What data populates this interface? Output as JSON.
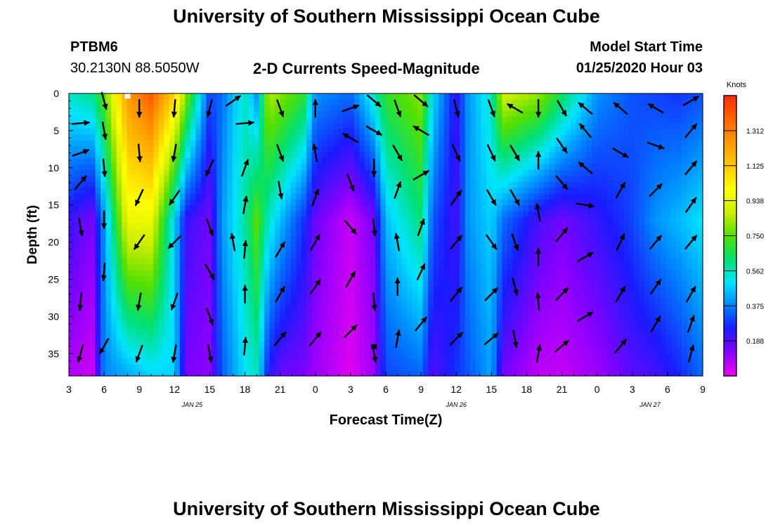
{
  "page": {
    "title_top": "University of Southern Mississippi Ocean Cube",
    "title_bottom": "University of Southern Mississippi Ocean Cube"
  },
  "header": {
    "station": "PTBM6",
    "coords": "30.2130N 88.5050W",
    "subtitle": "2-D Currents Speed-Magnitude",
    "model_start_label": "Model Start Time",
    "model_start_value": "01/25/2020 Hour 03"
  },
  "chart_data": {
    "type": "heatmap",
    "title": "2-D Currents Speed-Magnitude",
    "xlabel": "Forecast Time(Z)",
    "ylabel": "Depth (ft)",
    "x_tick_labels": [
      "3",
      "6",
      "9",
      "12",
      "15",
      "18",
      "21",
      "0",
      "3",
      "6",
      "9",
      "12",
      "15",
      "18",
      "21",
      "0",
      "3",
      "6",
      "9"
    ],
    "x_range_hours": [
      0,
      54
    ],
    "date_labels": [
      {
        "text": "JAN 25",
        "hour": 10.5
      },
      {
        "text": "JAN 26",
        "hour": 33
      },
      {
        "text": "JAN 27",
        "hour": 49.5
      }
    ],
    "y_ticks": [
      0,
      5,
      10,
      15,
      20,
      25,
      30,
      35
    ],
    "y_range_ft": [
      0,
      38
    ],
    "y_inverted": true,
    "colorbar": {
      "unit_label": "Knots",
      "tick_labels": [
        "1.312",
        "1.125",
        "0.938",
        "0.750",
        "0.562",
        "0.375",
        "0.188"
      ],
      "range": [
        0,
        1.5
      ],
      "colors": [
        "#ee00ee",
        "#8a00ff",
        "#1a1aff",
        "#0080ff",
        "#00e5ff",
        "#00e070",
        "#55e000",
        "#ccee00",
        "#ffff00",
        "#ffc800",
        "#ff9a00",
        "#ff6400",
        "#ff2a00"
      ]
    },
    "speed_profiles": [
      {
        "hour": 0,
        "surface": 0.55,
        "mid": 0.22,
        "bottom": 0.08
      },
      {
        "hour": 2,
        "surface": 0.6,
        "mid": 0.14,
        "bottom": 0.04
      },
      {
        "hour": 3,
        "surface": 0.75,
        "mid": 0.4,
        "bottom": 0.38
      },
      {
        "hour": 5,
        "surface": 1.25,
        "mid": 0.95,
        "bottom": 0.42
      },
      {
        "hour": 7,
        "surface": 1.4,
        "mid": 0.95,
        "bottom": 0.48
      },
      {
        "hour": 9,
        "surface": 1.1,
        "mid": 0.48,
        "bottom": 0.48
      },
      {
        "hour": 10,
        "surface": 0.8,
        "mid": 0.22,
        "bottom": 0.14
      },
      {
        "hour": 12,
        "surface": 0.3,
        "mid": 0.15,
        "bottom": 0.12
      },
      {
        "hour": 13,
        "surface": 0.35,
        "mid": 0.4,
        "bottom": 0.32
      },
      {
        "hour": 15,
        "surface": 0.55,
        "mid": 0.58,
        "bottom": 0.5
      },
      {
        "hour": 16,
        "surface": 0.4,
        "mid": 0.75,
        "bottom": 0.55
      },
      {
        "hour": 17,
        "surface": 0.85,
        "mid": 0.55,
        "bottom": 0.24
      },
      {
        "hour": 18,
        "surface": 0.8,
        "mid": 0.45,
        "bottom": 0.16
      },
      {
        "hour": 20,
        "surface": 0.7,
        "mid": 0.28,
        "bottom": 0.14
      },
      {
        "hour": 21,
        "surface": 0.4,
        "mid": 0.16,
        "bottom": 0.1
      },
      {
        "hour": 24,
        "surface": 0.35,
        "mid": 0.05,
        "bottom": 0.02
      },
      {
        "hour": 26,
        "surface": 0.55,
        "mid": 0.15,
        "bottom": 0.1
      },
      {
        "hour": 27,
        "surface": 0.7,
        "mid": 0.45,
        "bottom": 0.3
      },
      {
        "hour": 30,
        "surface": 0.8,
        "mid": 0.62,
        "bottom": 0.34
      },
      {
        "hour": 31,
        "surface": 0.5,
        "mid": 0.32,
        "bottom": 0.18
      },
      {
        "hour": 33,
        "surface": 0.22,
        "mid": 0.2,
        "bottom": 0.28
      },
      {
        "hour": 34,
        "surface": 0.4,
        "mid": 0.4,
        "bottom": 0.32
      },
      {
        "hour": 36,
        "surface": 0.55,
        "mid": 0.48,
        "bottom": 0.42
      },
      {
        "hour": 37,
        "surface": 0.9,
        "mid": 0.35,
        "bottom": 0.15
      },
      {
        "hour": 40,
        "surface": 0.82,
        "mid": 0.2,
        "bottom": 0.06
      },
      {
        "hour": 42,
        "surface": 0.65,
        "mid": 0.15,
        "bottom": 0.05
      },
      {
        "hour": 45,
        "surface": 0.4,
        "mid": 0.22,
        "bottom": 0.1
      },
      {
        "hour": 48,
        "surface": 0.32,
        "mid": 0.3,
        "bottom": 0.18
      },
      {
        "hour": 50,
        "surface": 0.3,
        "mid": 0.4,
        "bottom": 0.2
      },
      {
        "hour": 52,
        "surface": 0.28,
        "mid": 0.45,
        "bottom": 0.26
      },
      {
        "hour": 54,
        "surface": 0.32,
        "mid": 0.5,
        "bottom": 0.35
      }
    ],
    "vectors": [
      {
        "hour": 1.0,
        "depth": 4,
        "dir": 85
      },
      {
        "hour": 1.0,
        "depth": 8,
        "dir": 70
      },
      {
        "hour": 1.0,
        "depth": 12,
        "dir": 40
      },
      {
        "hour": 1.0,
        "depth": 18,
        "dir": 170
      },
      {
        "hour": 1.0,
        "depth": 28,
        "dir": 185
      },
      {
        "hour": 1.0,
        "depth": 35,
        "dir": 195
      },
      {
        "hour": 3.0,
        "depth": 1,
        "dir": 165
      },
      {
        "hour": 3.0,
        "depth": 5,
        "dir": 170
      },
      {
        "hour": 3.0,
        "depth": 10,
        "dir": 175
      },
      {
        "hour": 3.0,
        "depth": 17,
        "dir": 180
      },
      {
        "hour": 3.0,
        "depth": 24,
        "dir": 185
      },
      {
        "hour": 3.0,
        "depth": 34,
        "dir": 210
      },
      {
        "hour": 6.0,
        "depth": 2,
        "dir": 180
      },
      {
        "hour": 6.0,
        "depth": 8,
        "dir": 175
      },
      {
        "hour": 6.0,
        "depth": 14,
        "dir": 205
      },
      {
        "hour": 6.0,
        "depth": 20,
        "dir": 215
      },
      {
        "hour": 6.0,
        "depth": 28,
        "dir": 190
      },
      {
        "hour": 6.0,
        "depth": 35,
        "dir": 200
      },
      {
        "hour": 9.0,
        "depth": 2,
        "dir": 185
      },
      {
        "hour": 9.0,
        "depth": 8,
        "dir": 190
      },
      {
        "hour": 9.0,
        "depth": 14,
        "dir": 215
      },
      {
        "hour": 9.0,
        "depth": 20,
        "dir": 225
      },
      {
        "hour": 9.0,
        "depth": 28,
        "dir": 200
      },
      {
        "hour": 9.0,
        "depth": 35,
        "dir": 190
      },
      {
        "hour": 12.0,
        "depth": 2,
        "dir": 195
      },
      {
        "hour": 12.0,
        "depth": 10,
        "dir": 205
      },
      {
        "hour": 12.0,
        "depth": 18,
        "dir": 160
      },
      {
        "hour": 12.0,
        "depth": 24,
        "dir": 150
      },
      {
        "hour": 12.0,
        "depth": 30,
        "dir": 160
      },
      {
        "hour": 12.0,
        "depth": 35,
        "dir": 170
      },
      {
        "hour": 14.0,
        "depth": 1,
        "dir": 55
      },
      {
        "hour": 14.0,
        "depth": 20,
        "dir": 350
      },
      {
        "hour": 15.0,
        "depth": 4,
        "dir": 85
      },
      {
        "hour": 15.0,
        "depth": 10,
        "dir": 20
      },
      {
        "hour": 15.0,
        "depth": 15,
        "dir": 10
      },
      {
        "hour": 15.0,
        "depth": 21,
        "dir": 5
      },
      {
        "hour": 15.0,
        "depth": 27,
        "dir": 0
      },
      {
        "hour": 15.0,
        "depth": 34,
        "dir": 5
      },
      {
        "hour": 18.0,
        "depth": 2,
        "dir": 160
      },
      {
        "hour": 18.0,
        "depth": 8,
        "dir": 160
      },
      {
        "hour": 18.0,
        "depth": 13,
        "dir": 170
      },
      {
        "hour": 18.0,
        "depth": 21,
        "dir": 30
      },
      {
        "hour": 18.0,
        "depth": 27,
        "dir": 30
      },
      {
        "hour": 18.0,
        "depth": 33,
        "dir": 40
      },
      {
        "hour": 21.0,
        "depth": 2,
        "dir": 0
      },
      {
        "hour": 21.0,
        "depth": 8,
        "dir": 350
      },
      {
        "hour": 21.0,
        "depth": 14,
        "dir": 20
      },
      {
        "hour": 21.0,
        "depth": 20,
        "dir": 30
      },
      {
        "hour": 21.0,
        "depth": 26,
        "dir": 35
      },
      {
        "hour": 21.0,
        "depth": 33,
        "dir": 40
      },
      {
        "hour": 24.0,
        "depth": 2,
        "dir": 70
      },
      {
        "hour": 24.0,
        "depth": 6,
        "dir": 300
      },
      {
        "hour": 24.0,
        "depth": 12,
        "dir": 160
      },
      {
        "hour": 24.0,
        "depth": 18,
        "dir": 140
      },
      {
        "hour": 24.0,
        "depth": 25,
        "dir": 30
      },
      {
        "hour": 24.0,
        "depth": 32,
        "dir": 45
      },
      {
        "hour": 26.0,
        "depth": 1,
        "dir": 130
      },
      {
        "hour": 26.0,
        "depth": 5,
        "dir": 120
      },
      {
        "hour": 26.0,
        "depth": 10,
        "dir": 180
      },
      {
        "hour": 26.0,
        "depth": 18,
        "dir": 175
      },
      {
        "hour": 26.0,
        "depth": 28,
        "dir": 175
      },
      {
        "hour": 26.0,
        "depth": 35,
        "dir": 170
      },
      {
        "hour": 28.0,
        "depth": 2,
        "dir": 160
      },
      {
        "hour": 28.0,
        "depth": 8,
        "dir": 150
      },
      {
        "hour": 28.0,
        "depth": 13,
        "dir": 20
      },
      {
        "hour": 28.0,
        "depth": 20,
        "dir": 350
      },
      {
        "hour": 28.0,
        "depth": 26,
        "dir": 0
      },
      {
        "hour": 28.0,
        "depth": 33,
        "dir": 10
      },
      {
        "hour": 30.0,
        "depth": 1,
        "dir": 130
      },
      {
        "hour": 30.0,
        "depth": 5,
        "dir": 300
      },
      {
        "hour": 30.0,
        "depth": 11,
        "dir": 60
      },
      {
        "hour": 30.0,
        "depth": 18,
        "dir": 20
      },
      {
        "hour": 30.0,
        "depth": 24,
        "dir": 25
      },
      {
        "hour": 30.0,
        "depth": 31,
        "dir": 40
      },
      {
        "hour": 33.0,
        "depth": 2,
        "dir": 165
      },
      {
        "hour": 33.0,
        "depth": 8,
        "dir": 155
      },
      {
        "hour": 33.0,
        "depth": 14,
        "dir": 35
      },
      {
        "hour": 33.0,
        "depth": 20,
        "dir": 40
      },
      {
        "hour": 33.0,
        "depth": 27,
        "dir": 40
      },
      {
        "hour": 33.0,
        "depth": 33,
        "dir": 45
      },
      {
        "hour": 36.0,
        "depth": 2,
        "dir": 160
      },
      {
        "hour": 36.0,
        "depth": 8,
        "dir": 155
      },
      {
        "hour": 36.0,
        "depth": 14,
        "dir": 150
      },
      {
        "hour": 36.0,
        "depth": 20,
        "dir": 145
      },
      {
        "hour": 36.0,
        "depth": 27,
        "dir": 45
      },
      {
        "hour": 36.0,
        "depth": 33,
        "dir": 50
      },
      {
        "hour": 38.0,
        "depth": 2,
        "dir": 300
      },
      {
        "hour": 38.0,
        "depth": 8,
        "dir": 150
      },
      {
        "hour": 38.0,
        "depth": 14,
        "dir": 150
      },
      {
        "hour": 38.0,
        "depth": 20,
        "dir": 160
      },
      {
        "hour": 38.0,
        "depth": 26,
        "dir": 165
      },
      {
        "hour": 38.0,
        "depth": 33,
        "dir": 170
      },
      {
        "hour": 40.0,
        "depth": 2,
        "dir": 180
      },
      {
        "hour": 40.0,
        "depth": 9,
        "dir": 0
      },
      {
        "hour": 40.0,
        "depth": 16,
        "dir": 350
      },
      {
        "hour": 40.0,
        "depth": 22,
        "dir": 0
      },
      {
        "hour": 40.0,
        "depth": 28,
        "dir": 355
      },
      {
        "hour": 40.0,
        "depth": 35,
        "dir": 10
      },
      {
        "hour": 42.0,
        "depth": 2,
        "dir": 150
      },
      {
        "hour": 42.0,
        "depth": 7,
        "dir": 145
      },
      {
        "hour": 42.0,
        "depth": 12,
        "dir": 140
      },
      {
        "hour": 42.0,
        "depth": 19,
        "dir": 40
      },
      {
        "hour": 42.0,
        "depth": 27,
        "dir": 45
      },
      {
        "hour": 42.0,
        "depth": 34,
        "dir": 50
      },
      {
        "hour": 44.0,
        "depth": 2,
        "dir": 310
      },
      {
        "hour": 44.0,
        "depth": 5,
        "dir": 320
      },
      {
        "hour": 44.0,
        "depth": 10,
        "dir": 310
      },
      {
        "hour": 44.0,
        "depth": 15,
        "dir": 100
      },
      {
        "hour": 44.0,
        "depth": 22,
        "dir": 60
      },
      {
        "hour": 44.0,
        "depth": 30,
        "dir": 60
      },
      {
        "hour": 47.0,
        "depth": 2,
        "dir": 310
      },
      {
        "hour": 47.0,
        "depth": 8,
        "dir": 120
      },
      {
        "hour": 47.0,
        "depth": 13,
        "dir": 30
      },
      {
        "hour": 47.0,
        "depth": 20,
        "dir": 25
      },
      {
        "hour": 47.0,
        "depth": 27,
        "dir": 30
      },
      {
        "hour": 47.0,
        "depth": 34,
        "dir": 40
      },
      {
        "hour": 50.0,
        "depth": 2,
        "dir": 300
      },
      {
        "hour": 50.0,
        "depth": 7,
        "dir": 110
      },
      {
        "hour": 50.0,
        "depth": 13,
        "dir": 45
      },
      {
        "hour": 50.0,
        "depth": 20,
        "dir": 40
      },
      {
        "hour": 50.0,
        "depth": 26,
        "dir": 35
      },
      {
        "hour": 50.0,
        "depth": 31,
        "dir": 30
      },
      {
        "hour": 53.0,
        "depth": 1,
        "dir": 60
      },
      {
        "hour": 53.0,
        "depth": 5,
        "dir": 40
      },
      {
        "hour": 53.0,
        "depth": 10,
        "dir": 40
      },
      {
        "hour": 53.0,
        "depth": 15,
        "dir": 35
      },
      {
        "hour": 53.0,
        "depth": 20,
        "dir": 40
      },
      {
        "hour": 53.0,
        "depth": 27,
        "dir": 30
      },
      {
        "hour": 53.0,
        "depth": 31,
        "dir": 20
      },
      {
        "hour": 53.0,
        "depth": 35,
        "dir": 15
      }
    ],
    "markers": [
      {
        "hour": 5,
        "depth": 0.3,
        "color": "#ffffff"
      },
      {
        "hour": 26,
        "depth": 34,
        "color": "#000000"
      }
    ]
  }
}
